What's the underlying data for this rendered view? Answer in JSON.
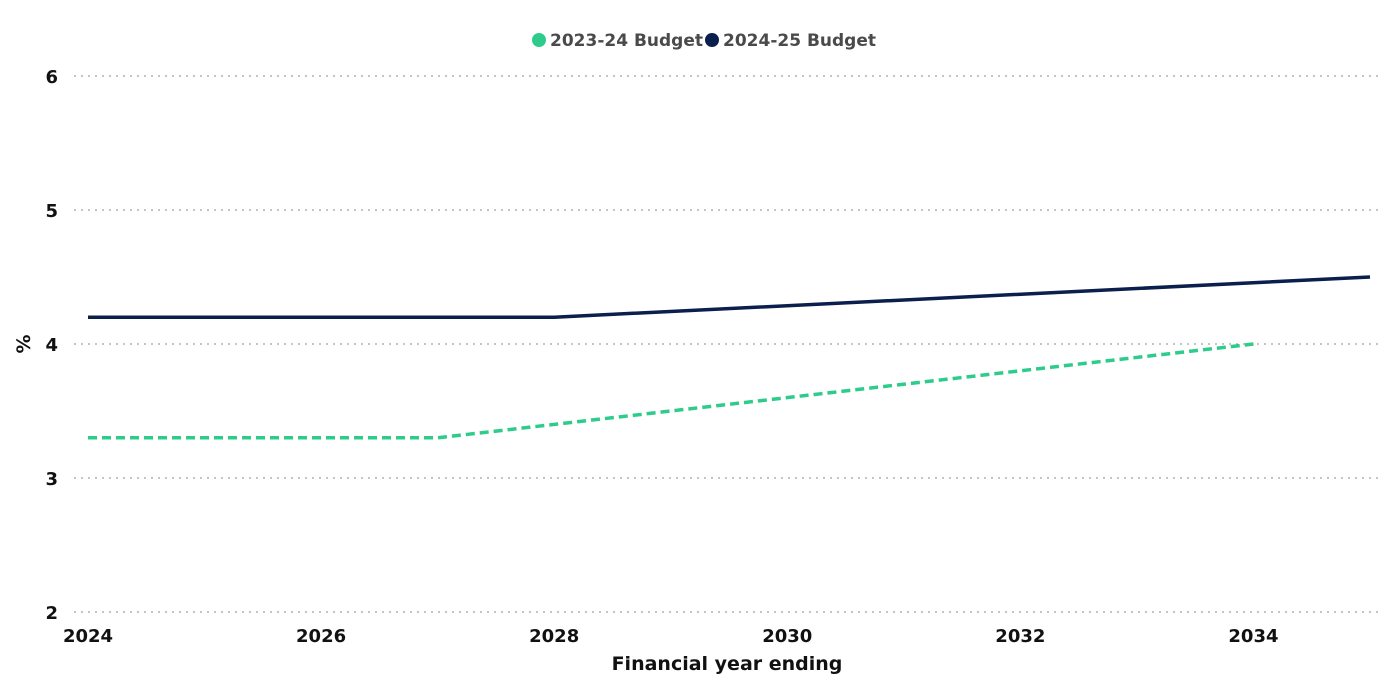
{
  "chart_data": {
    "type": "line",
    "xlabel": "Financial year ending",
    "ylabel": "%",
    "xlim": [
      2024,
      2035
    ],
    "ylim": [
      2,
      6
    ],
    "x_ticks": [
      2024,
      2026,
      2028,
      2030,
      2032,
      2034
    ],
    "y_ticks": [
      2,
      3,
      4,
      5,
      6
    ],
    "grid": "horizontal",
    "legend": "top-center",
    "series": [
      {
        "name": "2023-24 Budget",
        "color": "#2ecc8a",
        "line_style": "dashed",
        "x": [
          2024,
          2027,
          2034
        ],
        "values": [
          3.3,
          3.3,
          4.0
        ]
      },
      {
        "name": "2024-25 Budget",
        "color": "#0b1f4d",
        "line_style": "solid",
        "x": [
          2024,
          2028,
          2035
        ],
        "values": [
          4.2,
          4.2,
          4.5
        ]
      }
    ]
  }
}
